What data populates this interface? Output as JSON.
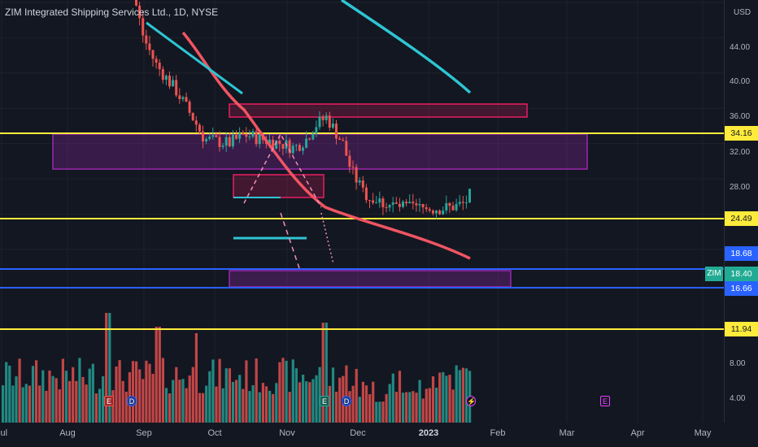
{
  "header": {
    "symbol_title": "ZIM Integrated Shipping Services Ltd., 1D, NYSE"
  },
  "price_axis": {
    "currency": "USD",
    "ticks": [
      "44.00",
      "40.00",
      "36.00",
      "32.00",
      "28.00"
    ],
    "volume_ticks": [
      "8.00",
      "4.00"
    ],
    "badges": {
      "line_top": "34.16",
      "line_mid": "24.49",
      "ma": "18.68",
      "last": "18.40",
      "support": "16.66",
      "low": "11.94"
    },
    "symbol_tag": "ZIM"
  },
  "time_axis": {
    "months": [
      "Jul",
      "Aug",
      "Sep",
      "Oct",
      "Nov",
      "Dec",
      "2023",
      "Feb",
      "Mar",
      "Apr",
      "May"
    ]
  },
  "events": {
    "earnings": "E",
    "dividend": "D",
    "split": "⚡"
  },
  "colors": {
    "background": "#131722",
    "up": "#26a69a",
    "down": "#ef5350",
    "ma_red": "#f05562",
    "ma_cyan": "#2ec5d3",
    "yellow_line": "#ffeb3b",
    "blue_line": "#2962ff",
    "box_purple": "#9c27b0",
    "box_pink": "#e91e63"
  }
}
